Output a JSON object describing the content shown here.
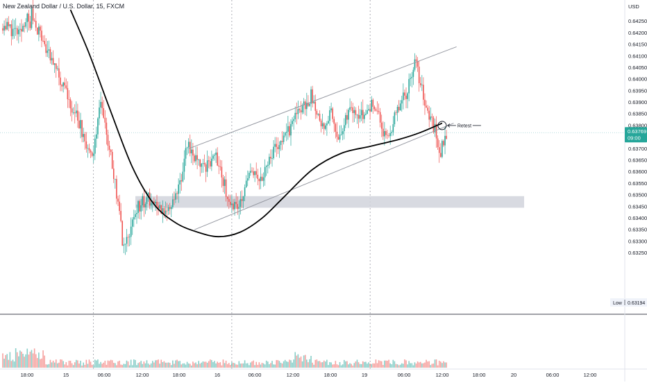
{
  "header": {
    "title": "New Zealand Dollar / U.S. Dollar, 15, FXCM",
    "currency": "USD"
  },
  "colors": {
    "up": "#26a69a",
    "down": "#ef5350",
    "channel": "#9598a1",
    "zone": "#d1d4dc",
    "curve": "#000000",
    "price_badge": "#26a69a",
    "crosshair": "#9ccfd2"
  },
  "price_axis": {
    "min": 0.63,
    "max": 0.643,
    "ticks": [
      "0.64250",
      "0.64200",
      "0.64150",
      "0.64100",
      "0.64050",
      "0.64000",
      "0.63950",
      "0.63900",
      "0.63850",
      "0.63800",
      "0.63750",
      "0.63700",
      "0.63650",
      "0.63600",
      "0.63550",
      "0.63500",
      "0.63450",
      "0.63400",
      "0.63350",
      "0.63300",
      "0.63250"
    ]
  },
  "current_price": {
    "value": "0.63769",
    "timer": "09:00"
  },
  "low_label": {
    "label": "Low",
    "value": "0.63194"
  },
  "time_axis": {
    "labels": [
      "18:00",
      "15",
      "06:00",
      "12:00",
      "18:00",
      "16",
      "06:00",
      "12:00",
      "18:00",
      "19",
      "06:00",
      "12:00",
      "18:00",
      "20",
      "06:00",
      "12:00"
    ]
  },
  "annotation": {
    "text": "Retest"
  },
  "chart_data": {
    "type": "candlestick",
    "instrument": "New Zealand Dollar / U.S. Dollar",
    "timeframe": "15",
    "source": "FXCM",
    "y_range": [
      0.63,
      0.643
    ],
    "segments": [
      {
        "from": 0,
        "to": 12,
        "start": 0.6424,
        "end": 0.6419
      },
      {
        "from": 12,
        "to": 16,
        "start": 0.6419,
        "end": 0.6427
      },
      {
        "from": 16,
        "to": 20,
        "start": 0.6427,
        "end": 0.6422
      },
      {
        "from": 20,
        "to": 55,
        "start": 0.6428,
        "end": 0.6378
      },
      {
        "from": 55,
        "to": 62,
        "start": 0.6378,
        "end": 0.6366
      },
      {
        "from": 62,
        "to": 68,
        "start": 0.6366,
        "end": 0.6391
      },
      {
        "from": 68,
        "to": 78,
        "start": 0.6391,
        "end": 0.6356
      },
      {
        "from": 78,
        "to": 84,
        "start": 0.6356,
        "end": 0.6326
      },
      {
        "from": 84,
        "to": 92,
        "start": 0.6326,
        "end": 0.6343
      },
      {
        "from": 92,
        "to": 100,
        "start": 0.6343,
        "end": 0.6349
      },
      {
        "from": 100,
        "to": 108,
        "start": 0.6349,
        "end": 0.6343
      },
      {
        "from": 108,
        "to": 116,
        "start": 0.6343,
        "end": 0.6345
      },
      {
        "from": 116,
        "to": 124,
        "start": 0.6345,
        "end": 0.6358
      },
      {
        "from": 124,
        "to": 128,
        "start": 0.6358,
        "end": 0.6372
      },
      {
        "from": 128,
        "to": 136,
        "start": 0.6372,
        "end": 0.6363
      },
      {
        "from": 136,
        "to": 140,
        "start": 0.6363,
        "end": 0.6362
      },
      {
        "from": 140,
        "to": 148,
        "start": 0.6362,
        "end": 0.6366
      },
      {
        "from": 148,
        "to": 156,
        "start": 0.6366,
        "end": 0.635
      },
      {
        "from": 156,
        "to": 162,
        "start": 0.635,
        "end": 0.6344
      },
      {
        "from": 162,
        "to": 172,
        "start": 0.6344,
        "end": 0.636
      },
      {
        "from": 172,
        "to": 178,
        "start": 0.636,
        "end": 0.6356
      },
      {
        "from": 178,
        "to": 188,
        "start": 0.6356,
        "end": 0.637
      },
      {
        "from": 188,
        "to": 198,
        "start": 0.637,
        "end": 0.6377
      },
      {
        "from": 198,
        "to": 204,
        "start": 0.6377,
        "end": 0.6385
      },
      {
        "from": 204,
        "to": 214,
        "start": 0.6385,
        "end": 0.6393
      },
      {
        "from": 214,
        "to": 222,
        "start": 0.6393,
        "end": 0.638
      },
      {
        "from": 222,
        "to": 228,
        "start": 0.638,
        "end": 0.6385
      },
      {
        "from": 228,
        "to": 234,
        "start": 0.6385,
        "end": 0.6374
      },
      {
        "from": 234,
        "to": 242,
        "start": 0.6374,
        "end": 0.6389
      },
      {
        "from": 242,
        "to": 250,
        "start": 0.6389,
        "end": 0.6384
      },
      {
        "from": 250,
        "to": 258,
        "start": 0.6384,
        "end": 0.639
      },
      {
        "from": 258,
        "to": 266,
        "start": 0.639,
        "end": 0.6373
      },
      {
        "from": 266,
        "to": 274,
        "start": 0.6373,
        "end": 0.6386
      },
      {
        "from": 274,
        "to": 280,
        "start": 0.6386,
        "end": 0.6394
      },
      {
        "from": 280,
        "to": 286,
        "start": 0.6394,
        "end": 0.6408
      },
      {
        "from": 286,
        "to": 294,
        "start": 0.6408,
        "end": 0.6388
      },
      {
        "from": 294,
        "to": 300,
        "start": 0.6388,
        "end": 0.6378
      },
      {
        "from": 300,
        "to": 304,
        "start": 0.6378,
        "end": 0.6368
      },
      {
        "from": 304,
        "to": 308,
        "start": 0.6368,
        "end": 0.6378
      }
    ],
    "channel": {
      "upper": [
        {
          "x": "15 16:30",
          "y": 0.637
        },
        {
          "x": "19 15:00",
          "y": 0.6414
        }
      ],
      "lower": [
        {
          "x": "15 17:30",
          "y": 0.6335
        },
        {
          "x": "19 14:30",
          "y": 0.6381
        }
      ]
    },
    "support_zone": {
      "from": 0.63445,
      "to": 0.63495
    },
    "curve": [
      {
        "x": 47,
        "y": 0.643
      },
      {
        "x": 60,
        "y": 0.6411
      },
      {
        "x": 75,
        "y": 0.6386
      },
      {
        "x": 90,
        "y": 0.6362
      },
      {
        "x": 105,
        "y": 0.6346
      },
      {
        "x": 120,
        "y": 0.6338
      },
      {
        "x": 135,
        "y": 0.6334
      },
      {
        "x": 150,
        "y": 0.6332
      },
      {
        "x": 165,
        "y": 0.6334
      },
      {
        "x": 180,
        "y": 0.634
      },
      {
        "x": 195,
        "y": 0.6349
      },
      {
        "x": 215,
        "y": 0.6361
      },
      {
        "x": 235,
        "y": 0.6368
      },
      {
        "x": 255,
        "y": 0.6371
      },
      {
        "x": 275,
        "y": 0.6374
      },
      {
        "x": 290,
        "y": 0.6377
      },
      {
        "x": 305,
        "y": 0.6381
      }
    ],
    "session_separators": [
      "15",
      "16",
      "19"
    ],
    "retest_price": 0.638
  }
}
